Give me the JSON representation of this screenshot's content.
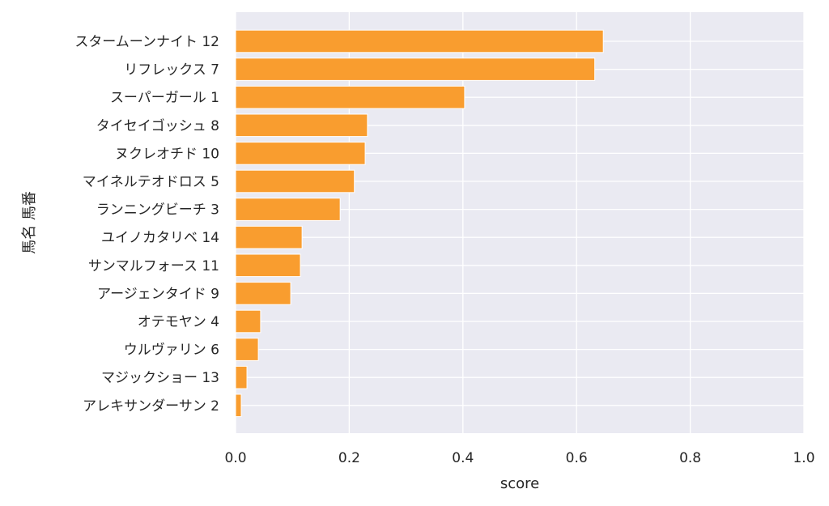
{
  "chart_data": {
    "type": "bar",
    "orientation": "horizontal",
    "title": "",
    "xlabel": "score",
    "ylabel": "馬名 馬番",
    "xlim": [
      0,
      1.0
    ],
    "xticks": [
      "0.0",
      "0.2",
      "0.4",
      "0.6",
      "0.8",
      "1.0"
    ],
    "grid": true,
    "bar_color": "#f99d2f",
    "background": "#eaeaf2",
    "categories": [
      "スタームーンナイト 12",
      "リフレックス 7",
      "スーパーガール 1",
      "タイセイゴッシュ 8",
      "ヌクレオチド 10",
      "マイネルテオドロス 5",
      "ランニングビーチ 3",
      "ユイノカタリベ 14",
      "サンマルフォース 11",
      "アージェンタイド 9",
      "オテモヤン 4",
      "ウルヴァリン 6",
      "マジックショー 13",
      "アレキサンダーサン 2"
    ],
    "values": [
      0.647,
      0.632,
      0.403,
      0.232,
      0.228,
      0.209,
      0.184,
      0.117,
      0.114,
      0.097,
      0.044,
      0.04,
      0.02,
      0.01
    ]
  }
}
